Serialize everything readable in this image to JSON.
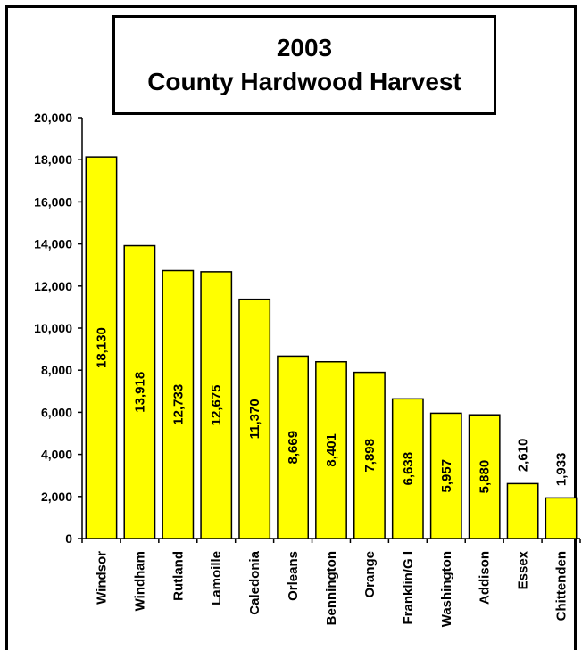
{
  "chart_data": {
    "type": "bar",
    "title_line1": "2003",
    "title_line2": "County Hardwood Harvest",
    "categories": [
      "Windsor",
      "Windham",
      "Rutland",
      "Lamoille",
      "Caledonia",
      "Orleans",
      "Bennington",
      "Orange",
      "Franklin/G I",
      "Washington",
      "Addison",
      "Essex",
      "Chittenden"
    ],
    "values": [
      18130,
      13918,
      12733,
      12675,
      11370,
      8669,
      8401,
      7898,
      6638,
      5957,
      5880,
      2610,
      1933
    ],
    "value_labels": [
      "18,130",
      "13,918",
      "12,733",
      "12,675",
      "11,370",
      "8,669",
      "8,401",
      "7,898",
      "6,638",
      "5,957",
      "5,880",
      "2,610",
      "1,933"
    ],
    "yticks": [
      "0",
      "2,000",
      "4,000",
      "6,000",
      "8,000",
      "10,000",
      "12,000",
      "14,000",
      "16,000",
      "18,000",
      "20,000"
    ],
    "ylim": [
      0,
      20000
    ],
    "bar_color": "#FFFF00",
    "grid": false,
    "legend": "none"
  }
}
